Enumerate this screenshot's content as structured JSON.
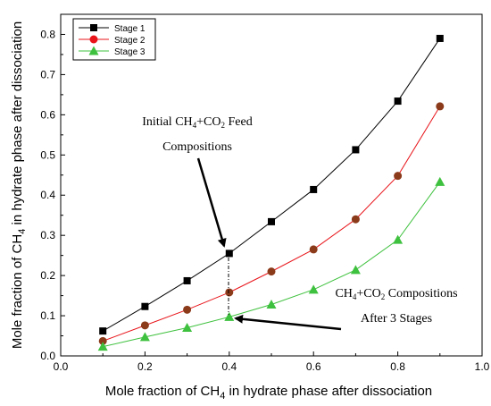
{
  "chart_data": {
    "type": "line",
    "title": "",
    "xlabel": "Mole fraction of CH4 in hydrate phase after dissociation",
    "ylabel": "Mole fraction of CH4 in hydrate phase after dissociation",
    "xlim": [
      0.0,
      1.0
    ],
    "ylim": [
      0.0,
      0.85
    ],
    "x_ticks": [
      "0.0",
      "0.2",
      "0.4",
      "0.6",
      "0.8",
      "1.0"
    ],
    "y_ticks": [
      "0.0",
      "0.1",
      "0.2",
      "0.3",
      "0.4",
      "0.5",
      "0.6",
      "0.7",
      "0.8"
    ],
    "legend_position": "top-left",
    "grid": false,
    "series": [
      {
        "name": "Stage 1",
        "color": "#000000",
        "marker": "square",
        "x": [
          0.1,
          0.2,
          0.3,
          0.4,
          0.5,
          0.6,
          0.7,
          0.8,
          0.9
        ],
        "y": [
          0.062,
          0.123,
          0.187,
          0.255,
          0.334,
          0.414,
          0.513,
          0.634,
          0.79
        ]
      },
      {
        "name": "Stage 2",
        "color": "#e8141a",
        "marker_color": "#8b3a1a",
        "marker": "circle",
        "x": [
          0.1,
          0.2,
          0.3,
          0.4,
          0.5,
          0.6,
          0.7,
          0.8,
          0.9
        ],
        "y": [
          0.037,
          0.076,
          0.115,
          0.158,
          0.21,
          0.265,
          0.34,
          0.448,
          0.621
        ]
      },
      {
        "name": "Stage 3",
        "color": "#3ec13e",
        "marker": "triangle",
        "x": [
          0.1,
          0.2,
          0.3,
          0.4,
          0.5,
          0.6,
          0.7,
          0.8,
          0.9
        ],
        "y": [
          0.023,
          0.047,
          0.07,
          0.097,
          0.128,
          0.165,
          0.214,
          0.289,
          0.433
        ]
      }
    ],
    "annotations": [
      {
        "lines": [
          "Initial CH4+CO2 Feed",
          "Compositions"
        ]
      },
      {
        "lines": [
          "CH4+CO2 Compositions",
          "After 3 Stages"
        ]
      }
    ]
  }
}
